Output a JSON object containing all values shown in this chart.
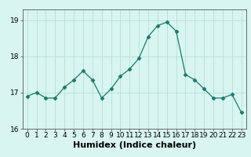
{
  "x": [
    0,
    1,
    2,
    3,
    4,
    5,
    6,
    7,
    8,
    9,
    10,
    11,
    12,
    13,
    14,
    15,
    16,
    17,
    18,
    19,
    20,
    21,
    22,
    23
  ],
  "y": [
    16.9,
    17.0,
    16.85,
    16.85,
    17.15,
    17.35,
    17.6,
    17.35,
    16.85,
    17.1,
    17.45,
    17.65,
    17.95,
    18.55,
    18.85,
    18.95,
    18.7,
    17.5,
    17.35,
    17.1,
    16.85,
    16.85,
    16.95,
    16.45
  ],
  "line_color": "#1a7a6a",
  "marker": "D",
  "marker_size": 2.5,
  "bg_color": "#d8f5f0",
  "grid_color": "#b8deda",
  "xlabel": "Humidex (Indice chaleur)",
  "xlabel_fontsize": 8,
  "ylim": [
    16,
    19.3
  ],
  "yticks": [
    16,
    17,
    18,
    19
  ],
  "xticks": [
    0,
    1,
    2,
    3,
    4,
    5,
    6,
    7,
    8,
    9,
    10,
    11,
    12,
    13,
    14,
    15,
    16,
    17,
    18,
    19,
    20,
    21,
    22,
    23
  ],
  "tick_fontsize": 6.5,
  "xlim_left": -0.5,
  "xlim_right": 23.5
}
